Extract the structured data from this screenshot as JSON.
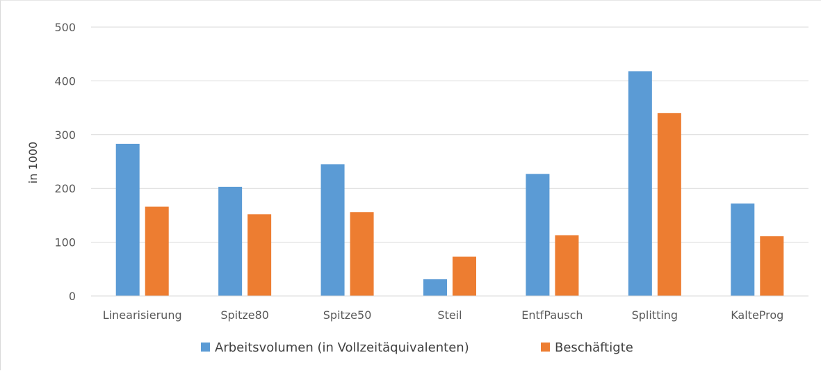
{
  "chart_data": {
    "type": "bar",
    "title": "",
    "xlabel": "",
    "ylabel": "in 1000",
    "ylim": [
      0,
      500
    ],
    "yticks": [
      0,
      100,
      200,
      300,
      400,
      500
    ],
    "grid": true,
    "legend_position": "bottom",
    "categories": [
      "Linearisierung",
      "Spitze80",
      "Spitze50",
      "Steil",
      "EntfPausch",
      "Splitting",
      "KalteProg"
    ],
    "series": [
      {
        "name": "Arbeitsvolumen (in Vollzeitäquivalenten)",
        "color": "#5b9bd5",
        "values": [
          283,
          203,
          245,
          31,
          227,
          418,
          172
        ]
      },
      {
        "name": "Beschäftigte",
        "color": "#ed7d31",
        "values": [
          166,
          152,
          156,
          73,
          113,
          340,
          111
        ]
      }
    ]
  }
}
